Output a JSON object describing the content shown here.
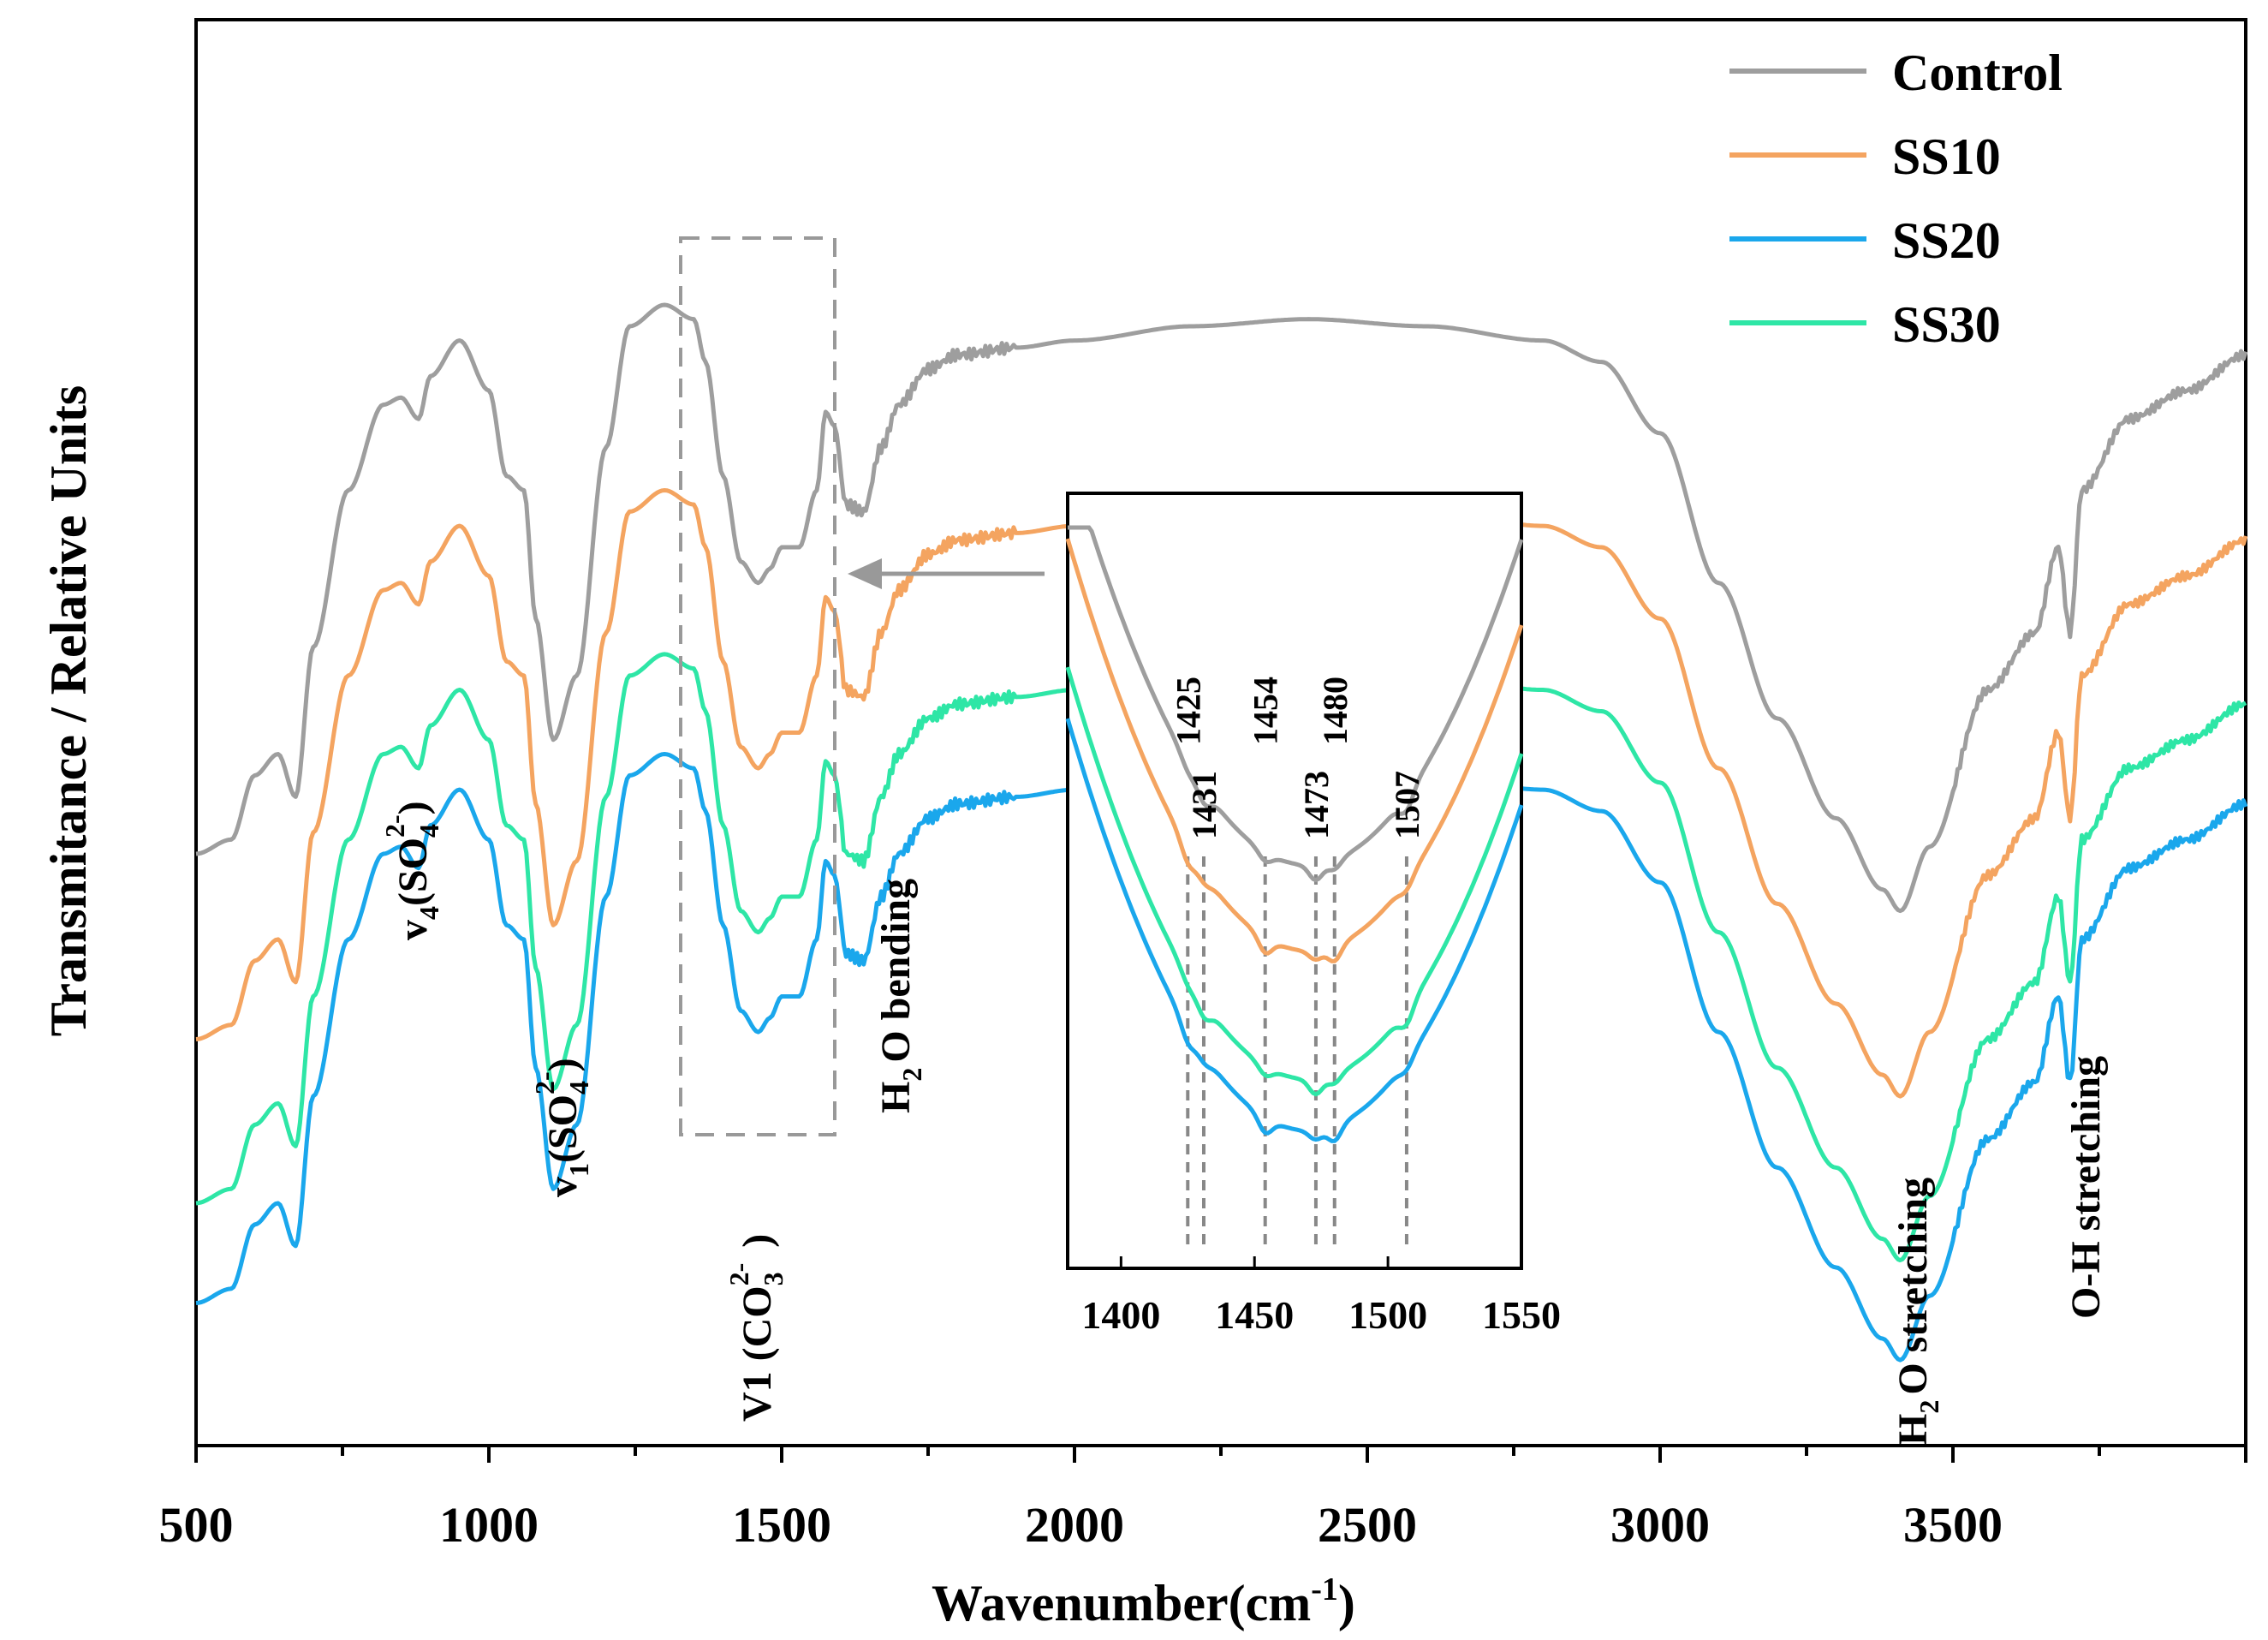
{
  "chart_data": {
    "type": "line",
    "xlabel": "Wavenumber(cm",
    "xlabel_sup": "-1",
    "xlabel_close": ")",
    "ylabel": "Transmitance / Relative Units",
    "xlim": [
      500,
      4000
    ],
    "x_ticks": [
      "500",
      "1000",
      "1500",
      "2000",
      "2500",
      "3000",
      "3500"
    ],
    "legend": [
      {
        "name": "Control",
        "color": "#9e9e9e"
      },
      {
        "name": "SS10",
        "color": "#f4a460"
      },
      {
        "name": "SS20",
        "color": "#1aa7ec"
      },
      {
        "name": "SS30",
        "color": "#2ee6a6"
      }
    ],
    "series": [
      {
        "name": "Control",
        "color": "#9e9e9e",
        "offset": 0,
        "points": [
          [
            500,
            0.585
          ],
          [
            560,
            0.575
          ],
          [
            600,
            0.53
          ],
          [
            640,
            0.515
          ],
          [
            670,
            0.545
          ],
          [
            700,
            0.44
          ],
          [
            760,
            0.33
          ],
          [
            820,
            0.27
          ],
          [
            850,
            0.265
          ],
          [
            880,
            0.28
          ],
          [
            900,
            0.25
          ],
          [
            950,
            0.225
          ],
          [
            1000,
            0.26
          ],
          [
            1030,
            0.32
          ],
          [
            1060,
            0.33
          ],
          [
            1080,
            0.42
          ],
          [
            1110,
            0.505
          ],
          [
            1150,
            0.46
          ],
          [
            1200,
            0.3
          ],
          [
            1240,
            0.215
          ],
          [
            1300,
            0.2
          ],
          [
            1350,
            0.21
          ],
          [
            1370,
            0.24
          ],
          [
            1400,
            0.32
          ],
          [
            1430,
            0.38
          ],
          [
            1460,
            0.395
          ],
          [
            1480,
            0.385
          ],
          [
            1500,
            0.37
          ],
          [
            1530,
            0.37
          ],
          [
            1560,
            0.33
          ],
          [
            1575,
            0.275
          ],
          [
            1590,
            0.285
          ],
          [
            1610,
            0.34
          ],
          [
            1640,
            0.345
          ],
          [
            1670,
            0.3
          ],
          [
            1700,
            0.27
          ],
          [
            1750,
            0.245
          ],
          [
            1800,
            0.235
          ],
          [
            1900,
            0.23
          ],
          [
            2000,
            0.225
          ],
          [
            2200,
            0.215
          ],
          [
            2400,
            0.21
          ],
          [
            2600,
            0.215
          ],
          [
            2800,
            0.225
          ],
          [
            2900,
            0.24
          ],
          [
            3000,
            0.29
          ],
          [
            3100,
            0.395
          ],
          [
            3200,
            0.49
          ],
          [
            3300,
            0.56
          ],
          [
            3380,
            0.61
          ],
          [
            3410,
            0.625
          ],
          [
            3460,
            0.58
          ],
          [
            3560,
            0.47
          ],
          [
            3640,
            0.43
          ],
          [
            3680,
            0.37
          ],
          [
            3700,
            0.43
          ],
          [
            3720,
            0.33
          ],
          [
            3800,
            0.28
          ],
          [
            3900,
            0.26
          ],
          [
            4000,
            0.235
          ]
        ]
      },
      {
        "name": "SS10",
        "color": "#f4a460",
        "offset": 0.13,
        "points": [
          [
            500,
            0.585
          ],
          [
            560,
            0.575
          ],
          [
            600,
            0.53
          ],
          [
            640,
            0.515
          ],
          [
            670,
            0.545
          ],
          [
            700,
            0.44
          ],
          [
            760,
            0.33
          ],
          [
            820,
            0.27
          ],
          [
            850,
            0.265
          ],
          [
            880,
            0.28
          ],
          [
            900,
            0.25
          ],
          [
            950,
            0.225
          ],
          [
            1000,
            0.26
          ],
          [
            1030,
            0.32
          ],
          [
            1060,
            0.33
          ],
          [
            1080,
            0.42
          ],
          [
            1110,
            0.505
          ],
          [
            1150,
            0.46
          ],
          [
            1200,
            0.3
          ],
          [
            1240,
            0.215
          ],
          [
            1300,
            0.2
          ],
          [
            1350,
            0.21
          ],
          [
            1370,
            0.24
          ],
          [
            1400,
            0.32
          ],
          [
            1430,
            0.38
          ],
          [
            1460,
            0.395
          ],
          [
            1480,
            0.385
          ],
          [
            1500,
            0.37
          ],
          [
            1530,
            0.37
          ],
          [
            1560,
            0.33
          ],
          [
            1575,
            0.275
          ],
          [
            1590,
            0.285
          ],
          [
            1610,
            0.34
          ],
          [
            1640,
            0.345
          ],
          [
            1670,
            0.3
          ],
          [
            1700,
            0.27
          ],
          [
            1750,
            0.245
          ],
          [
            1800,
            0.235
          ],
          [
            1900,
            0.23
          ],
          [
            2000,
            0.225
          ],
          [
            2200,
            0.215
          ],
          [
            2400,
            0.21
          ],
          [
            2600,
            0.215
          ],
          [
            2800,
            0.225
          ],
          [
            2900,
            0.24
          ],
          [
            3000,
            0.29
          ],
          [
            3100,
            0.395
          ],
          [
            3200,
            0.49
          ],
          [
            3300,
            0.56
          ],
          [
            3380,
            0.61
          ],
          [
            3410,
            0.625
          ],
          [
            3460,
            0.58
          ],
          [
            3560,
            0.47
          ],
          [
            3640,
            0.43
          ],
          [
            3680,
            0.37
          ],
          [
            3700,
            0.43
          ],
          [
            3720,
            0.33
          ],
          [
            3800,
            0.28
          ],
          [
            3900,
            0.26
          ],
          [
            4000,
            0.235
          ]
        ]
      },
      {
        "name": "SS30",
        "color": "#2ee6a6",
        "offset": 0.245,
        "points": [
          [
            500,
            0.585
          ],
          [
            560,
            0.575
          ],
          [
            600,
            0.53
          ],
          [
            640,
            0.515
          ],
          [
            670,
            0.545
          ],
          [
            700,
            0.44
          ],
          [
            760,
            0.33
          ],
          [
            820,
            0.27
          ],
          [
            850,
            0.265
          ],
          [
            880,
            0.28
          ],
          [
            900,
            0.25
          ],
          [
            950,
            0.225
          ],
          [
            1000,
            0.26
          ],
          [
            1030,
            0.32
          ],
          [
            1060,
            0.33
          ],
          [
            1080,
            0.42
          ],
          [
            1110,
            0.505
          ],
          [
            1150,
            0.46
          ],
          [
            1200,
            0.3
          ],
          [
            1240,
            0.215
          ],
          [
            1300,
            0.2
          ],
          [
            1350,
            0.21
          ],
          [
            1370,
            0.24
          ],
          [
            1400,
            0.32
          ],
          [
            1430,
            0.38
          ],
          [
            1460,
            0.395
          ],
          [
            1480,
            0.385
          ],
          [
            1500,
            0.37
          ],
          [
            1530,
            0.37
          ],
          [
            1560,
            0.33
          ],
          [
            1575,
            0.275
          ],
          [
            1590,
            0.285
          ],
          [
            1610,
            0.34
          ],
          [
            1640,
            0.345
          ],
          [
            1670,
            0.3
          ],
          [
            1700,
            0.27
          ],
          [
            1750,
            0.245
          ],
          [
            1800,
            0.235
          ],
          [
            1900,
            0.23
          ],
          [
            2000,
            0.225
          ],
          [
            2200,
            0.215
          ],
          [
            2400,
            0.21
          ],
          [
            2600,
            0.215
          ],
          [
            2800,
            0.225
          ],
          [
            2900,
            0.24
          ],
          [
            3000,
            0.29
          ],
          [
            3100,
            0.395
          ],
          [
            3200,
            0.49
          ],
          [
            3300,
            0.56
          ],
          [
            3380,
            0.61
          ],
          [
            3410,
            0.625
          ],
          [
            3460,
            0.58
          ],
          [
            3560,
            0.47
          ],
          [
            3640,
            0.43
          ],
          [
            3680,
            0.37
          ],
          [
            3700,
            0.43
          ],
          [
            3720,
            0.33
          ],
          [
            3800,
            0.28
          ],
          [
            3900,
            0.26
          ],
          [
            4000,
            0.235
          ]
        ]
      },
      {
        "name": "SS20",
        "color": "#1aa7ec",
        "offset": 0.315,
        "points": [
          [
            500,
            0.585
          ],
          [
            560,
            0.575
          ],
          [
            600,
            0.53
          ],
          [
            640,
            0.515
          ],
          [
            670,
            0.545
          ],
          [
            700,
            0.44
          ],
          [
            760,
            0.33
          ],
          [
            820,
            0.27
          ],
          [
            850,
            0.265
          ],
          [
            880,
            0.28
          ],
          [
            900,
            0.25
          ],
          [
            950,
            0.225
          ],
          [
            1000,
            0.26
          ],
          [
            1030,
            0.32
          ],
          [
            1060,
            0.33
          ],
          [
            1080,
            0.42
          ],
          [
            1110,
            0.505
          ],
          [
            1150,
            0.46
          ],
          [
            1200,
            0.3
          ],
          [
            1240,
            0.215
          ],
          [
            1300,
            0.2
          ],
          [
            1350,
            0.21
          ],
          [
            1370,
            0.24
          ],
          [
            1400,
            0.32
          ],
          [
            1430,
            0.38
          ],
          [
            1460,
            0.395
          ],
          [
            1480,
            0.385
          ],
          [
            1500,
            0.37
          ],
          [
            1530,
            0.37
          ],
          [
            1560,
            0.33
          ],
          [
            1575,
            0.275
          ],
          [
            1590,
            0.285
          ],
          [
            1610,
            0.34
          ],
          [
            1640,
            0.345
          ],
          [
            1670,
            0.3
          ],
          [
            1700,
            0.27
          ],
          [
            1750,
            0.245
          ],
          [
            1800,
            0.235
          ],
          [
            1900,
            0.23
          ],
          [
            2000,
            0.225
          ],
          [
            2200,
            0.215
          ],
          [
            2400,
            0.21
          ],
          [
            2600,
            0.215
          ],
          [
            2800,
            0.225
          ],
          [
            2900,
            0.24
          ],
          [
            3000,
            0.29
          ],
          [
            3100,
            0.395
          ],
          [
            3200,
            0.49
          ],
          [
            3300,
            0.56
          ],
          [
            3380,
            0.61
          ],
          [
            3410,
            0.625
          ],
          [
            3460,
            0.58
          ],
          [
            3560,
            0.47
          ],
          [
            3640,
            0.43
          ],
          [
            3680,
            0.37
          ],
          [
            3700,
            0.43
          ],
          [
            3720,
            0.33
          ],
          [
            3800,
            0.28
          ],
          [
            3900,
            0.26
          ],
          [
            4000,
            0.235
          ]
        ]
      }
    ],
    "annotations": {
      "v4_so4": {
        "main": "v",
        "sub": "4",
        "species": "(SO",
        "sub2": "4",
        "sup": "2-",
        "close": ")"
      },
      "v1_so4": {
        "main": "v",
        "sub": "1",
        "species": "(SO",
        "sub2": "4",
        "sup": "2-",
        "close": ")"
      },
      "v1_co3": {
        "main": "V1 (CO",
        "sub": "3",
        "sup": "2-",
        "close": ")"
      },
      "h2o_bending": {
        "main": "H",
        "sub": "2",
        "rest": "O bending"
      },
      "h2o_stretching": {
        "main": "H",
        "sub": "2",
        "rest": "O stretching"
      },
      "oh_stretching": {
        "text": "O-H stretching"
      }
    },
    "inset": {
      "xlim": [
        1380,
        1550
      ],
      "x_ticks": [
        "1400",
        "1450",
        "1500",
        "1550"
      ],
      "peak_labels": [
        "1425",
        "1431",
        "1454",
        "1473",
        "1480",
        "1507"
      ],
      "peak_positions": [
        1425,
        1431,
        1454,
        1473,
        1480,
        1507
      ]
    }
  }
}
